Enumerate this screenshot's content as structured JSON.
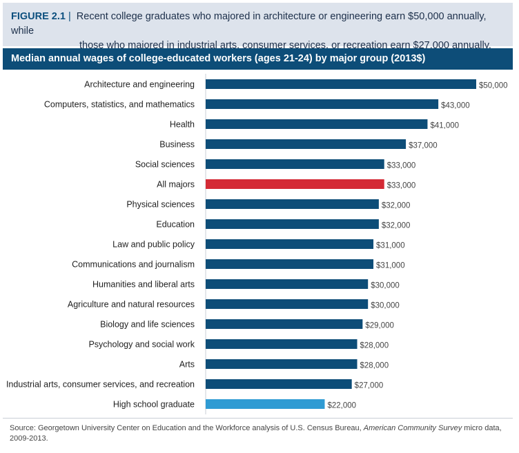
{
  "figure": {
    "label": "FIGURE 2.1",
    "separator": "|",
    "caption_line1": "Recent college graduates who majored in architecture or engineering earn $50,000 annually, while",
    "caption_line2": "those who majored in industrial arts, consumer services, or recreation earn $27,000 annually."
  },
  "colors": {
    "bar": "#0d4d78",
    "highlight_all_majors": "#d42a35",
    "highlight_high_school": "#2f9bd3",
    "header_bg": "#dde3ec",
    "title_bar_bg": "#0d4d78"
  },
  "chart_data": {
    "type": "bar",
    "orientation": "horizontal",
    "title": "Median annual wages of college-educated workers (ages 21-24) by major group (2013$)",
    "categories": [
      "Architecture and engineering",
      "Computers, statistics, and mathematics",
      "Health",
      "Business",
      "Social sciences",
      "All majors",
      "Physical sciences",
      "Education",
      "Law and public policy",
      "Communications and journalism",
      "Humanities and liberal arts",
      "Agriculture and natural resources",
      "Biology and life sciences",
      "Psychology and social work",
      "Arts",
      "Industrial arts, consumer services, and recreation",
      "High school graduate"
    ],
    "values": [
      50000,
      43000,
      41000,
      37000,
      33000,
      33000,
      32000,
      32000,
      31000,
      31000,
      30000,
      30000,
      29000,
      28000,
      28000,
      27000,
      22000
    ],
    "value_labels": [
      "$50,000",
      "$43,000",
      "$41,000",
      "$37,000",
      "$33,000",
      "$33,000",
      "$32,000",
      "$32,000",
      "$31,000",
      "$31,000",
      "$30,000",
      "$30,000",
      "$29,000",
      "$28,000",
      "$28,000",
      "$27,000",
      "$22,000"
    ],
    "bar_colors": [
      "#0d4d78",
      "#0d4d78",
      "#0d4d78",
      "#0d4d78",
      "#0d4d78",
      "#d42a35",
      "#0d4d78",
      "#0d4d78",
      "#0d4d78",
      "#0d4d78",
      "#0d4d78",
      "#0d4d78",
      "#0d4d78",
      "#0d4d78",
      "#0d4d78",
      "#0d4d78",
      "#2f9bd3"
    ],
    "xlim": [
      0,
      50000
    ],
    "xlabel": "",
    "ylabel": "",
    "grid": false,
    "legend": "none"
  },
  "source": {
    "prefix": "Source: Georgetown University Center on Education and the Workforce analysis of U.S. Census Bureau, ",
    "italic": "American Community Survey",
    "suffix": " micro data, 2009-2013."
  }
}
